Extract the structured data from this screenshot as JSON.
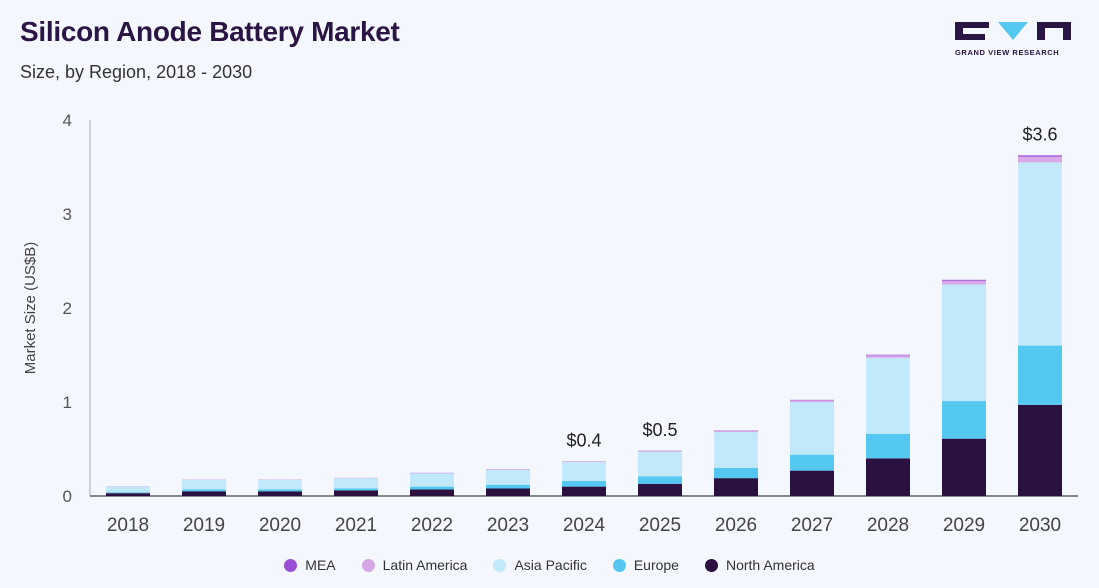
{
  "header": {
    "title": "Silicon Anode Battery Market",
    "subtitle": "Size, by Region, 2018 - 2030"
  },
  "logo": {
    "text": "GRAND VIEW RESEARCH"
  },
  "colors": {
    "MEA": "#9b4fd6",
    "Latin America": "#d7a8e8",
    "Asia Pacific": "#c2e9f9",
    "Europe": "#55c8f2",
    "North America": "#2a1140",
    "brand": "#2a1545",
    "accent": "#55c8f2"
  },
  "chart_data": {
    "type": "bar",
    "stacked": true,
    "title": "Silicon Anode Battery Market",
    "subtitle": "Size, by Region, 2018 - 2030",
    "xlabel": "",
    "ylabel": "Market Size (US$B)",
    "ylim": [
      0,
      4
    ],
    "yticks": [
      0,
      1,
      2,
      3,
      4
    ],
    "categories": [
      "2018",
      "2019",
      "2020",
      "2021",
      "2022",
      "2023",
      "2024",
      "2025",
      "2026",
      "2027",
      "2028",
      "2029",
      "2030"
    ],
    "series": [
      {
        "name": "North America",
        "values": [
          0.03,
          0.05,
          0.05,
          0.06,
          0.07,
          0.08,
          0.1,
          0.13,
          0.19,
          0.27,
          0.4,
          0.61,
          0.97
        ]
      },
      {
        "name": "Europe",
        "values": [
          0.01,
          0.02,
          0.02,
          0.02,
          0.03,
          0.04,
          0.06,
          0.08,
          0.11,
          0.17,
          0.26,
          0.4,
          0.63
        ]
      },
      {
        "name": "Asia Pacific",
        "values": [
          0.06,
          0.1,
          0.1,
          0.11,
          0.14,
          0.16,
          0.2,
          0.26,
          0.38,
          0.56,
          0.81,
          1.24,
          1.95
        ]
      },
      {
        "name": "Latin America",
        "values": [
          0.002,
          0.003,
          0.003,
          0.003,
          0.004,
          0.005,
          0.006,
          0.008,
          0.012,
          0.018,
          0.026,
          0.04,
          0.06
        ]
      },
      {
        "name": "MEA",
        "values": [
          0.001,
          0.001,
          0.001,
          0.001,
          0.002,
          0.002,
          0.002,
          0.003,
          0.004,
          0.005,
          0.007,
          0.01,
          0.014
        ]
      }
    ],
    "annotations": [
      {
        "category": "2024",
        "text": "$0.4"
      },
      {
        "category": "2025",
        "text": "$0.5"
      },
      {
        "category": "2030",
        "text": "$3.6"
      }
    ],
    "legend": [
      "MEA",
      "Latin America",
      "Asia Pacific",
      "Europe",
      "North America"
    ],
    "legend_position": "bottom",
    "grid": false
  }
}
